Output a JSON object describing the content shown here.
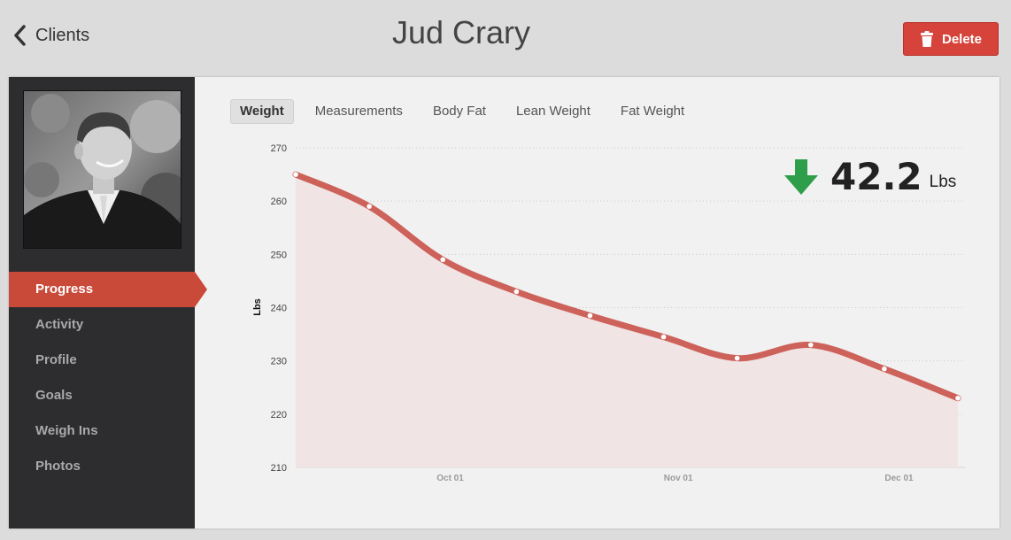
{
  "header": {
    "back_label": "Clients",
    "title": "Jud Crary",
    "delete_label": "Delete",
    "delete_color": "#d6433a"
  },
  "sidebar": {
    "items": [
      {
        "label": "Progress",
        "active": true
      },
      {
        "label": "Activity"
      },
      {
        "label": "Profile"
      },
      {
        "label": "Goals"
      },
      {
        "label": "Weigh Ins"
      },
      {
        "label": "Photos"
      }
    ]
  },
  "tabs": [
    {
      "label": "Weight",
      "active": true
    },
    {
      "label": "Measurements"
    },
    {
      "label": "Body Fat"
    },
    {
      "label": "Lean Weight"
    },
    {
      "label": "Fat Weight"
    }
  ],
  "summary": {
    "value": "42.2",
    "unit": "Lbs",
    "direction": "down",
    "arrow_icon": "arrow-down-icon",
    "arrow_color": "#2f9e4a"
  },
  "chart_data": {
    "type": "area",
    "ylabel": "Lbs",
    "ylim": [
      210,
      270
    ],
    "yticks": [
      210,
      220,
      230,
      240,
      250,
      260,
      270
    ],
    "xticks": [
      {
        "label": "Oct 01",
        "date": "2013-10-01"
      },
      {
        "label": "Nov 01",
        "date": "2013-11-01"
      },
      {
        "label": "Dec 01",
        "date": "2013-12-01"
      }
    ],
    "x": [
      "2013-09-10",
      "2013-09-20",
      "2013-09-30",
      "2013-10-10",
      "2013-10-20",
      "2013-10-30",
      "2013-11-09",
      "2013-11-19",
      "2013-11-29",
      "2013-12-09"
    ],
    "series": [
      {
        "values": [
          265.0,
          259.0,
          249.0,
          243.0,
          238.5,
          234.5,
          230.5,
          233.0,
          228.5,
          223.0
        ]
      }
    ],
    "line_color": "#cd625a",
    "fill_color": "#f1e4e4",
    "grid": true
  }
}
